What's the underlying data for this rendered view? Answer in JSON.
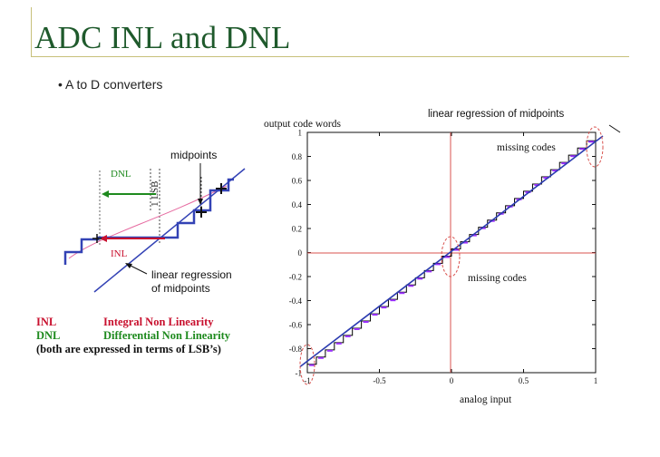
{
  "slide": {
    "title": "ADC INL and DNL",
    "bullet": "• A to D converters"
  },
  "left_diagram": {
    "dnl_label": "DNL",
    "lsb_label": "1 LSB",
    "midpoints_label": "midpoints",
    "inl_label": "INL",
    "regression_label_line1": "linear regression",
    "regression_label_line2": "of midpoints"
  },
  "legend": {
    "rows": [
      {
        "abbr": "INL",
        "full": "Integral Non Linearity"
      },
      {
        "abbr": "DNL",
        "full": "Differential Non Linearity"
      }
    ],
    "note": "(both are expressed in terms of LSB’s)"
  },
  "chart": {
    "ylabel": "output code words",
    "xlabel": "analog input",
    "regression_annotation": "linear regression of midpoints",
    "missing_codes_top": "missing codes",
    "missing_codes_mid": "missing codes"
  },
  "chart_data": {
    "type": "line",
    "xlabel": "analog input",
    "ylabel": "output code words",
    "xlim": [
      -1,
      1
    ],
    "ylim": [
      -1,
      1
    ],
    "xticks": [
      "-1",
      "-0.5",
      "0",
      "0.5",
      "1"
    ],
    "yticks": [
      "-1",
      "-0.8",
      "-0.6",
      "-0.4",
      "-0.2",
      "0",
      "0.2",
      "0.4",
      "0.6",
      "0.8",
      "1"
    ],
    "series": [
      {
        "name": "linear regression of midpoints",
        "x": [
          -1.05,
          1.05
        ],
        "y": [
          -0.95,
          0.97
        ]
      }
    ],
    "staircase_levels": 32,
    "grid": false,
    "colors": {
      "staircase": "#000000",
      "midpoints": "#9b30ff",
      "regression": "#2b3bb0",
      "axes_lines": "#d9534f"
    }
  }
}
